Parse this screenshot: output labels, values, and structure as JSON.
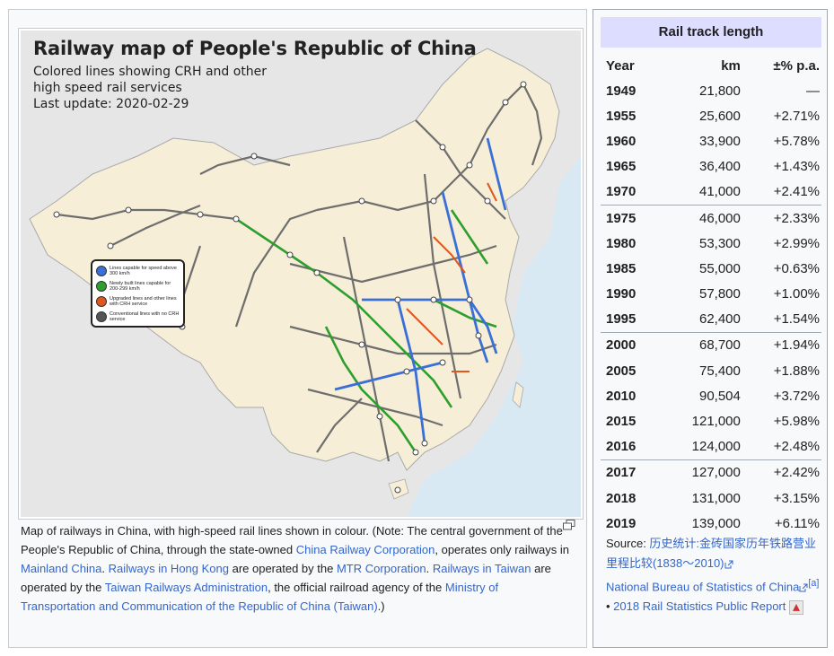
{
  "map": {
    "title": "Railway map of People's Republic of China",
    "subtitle_1": "Colored lines showing CRH and other",
    "subtitle_2": "high speed rail services",
    "subtitle_3": "Last update: 2020-02-29",
    "legend": [
      {
        "label": "Lines capable for speed above 300 km/h",
        "color": "#3a6fd8"
      },
      {
        "label": "Newly built lines capable for 200-299 km/h",
        "color": "#2e9e2e"
      },
      {
        "label": "Upgraded lines and other lines with CRH service",
        "color": "#e0561e"
      },
      {
        "label": "Conventional lines with no CRH service",
        "color": "#555555"
      }
    ],
    "colors": {
      "land": "#f6eed7",
      "foreign": "#e6e6e6",
      "sea": "#d9e9f4"
    }
  },
  "caption": {
    "t1": "Map of railways in China, with high-speed rail lines shown in colour.",
    "t2": " (Note: The central government of the People's Republic of China, through the state-owned ",
    "l1": "China Railway Corporation",
    "t3": ", operates only railways in ",
    "l2": "Mainland China",
    "t4": ". ",
    "l3": "Railways in Hong Kong",
    "t5": " are operated by the ",
    "l4": "MTR Corporation",
    "t6": ". ",
    "l5": "Railways in Taiwan",
    "t7": " are operated by the ",
    "l6": "Taiwan Railways Administration",
    "t8": ", the official railroad agency of the ",
    "l7": "Ministry of Transportation and Communication of the Republic of China (Taiwan)",
    "t9": ".)"
  },
  "infobox": {
    "title": "Rail track length",
    "headers": [
      "Year",
      "km",
      "±% p.a."
    ],
    "rows": [
      [
        "1949",
        "21,800",
        "—"
      ],
      [
        "1955",
        "25,600",
        "+2.71%"
      ],
      [
        "1960",
        "33,900",
        "+5.78%"
      ],
      [
        "1965",
        "36,400",
        "+1.43%"
      ],
      [
        "1970",
        "41,000",
        "+2.41%"
      ],
      [
        "1975",
        "46,000",
        "+2.33%"
      ],
      [
        "1980",
        "53,300",
        "+2.99%"
      ],
      [
        "1985",
        "55,000",
        "+0.63%"
      ],
      [
        "1990",
        "57,800",
        "+1.00%"
      ],
      [
        "1995",
        "62,400",
        "+1.54%"
      ],
      [
        "2000",
        "68,700",
        "+1.94%"
      ],
      [
        "2005",
        "75,400",
        "+1.88%"
      ],
      [
        "2010",
        "90,504",
        "+3.72%"
      ],
      [
        "2015",
        "121,000",
        "+5.98%"
      ],
      [
        "2016",
        "124,000",
        "+2.48%"
      ],
      [
        "2017",
        "127,000",
        "+2.42%"
      ],
      [
        "2018",
        "131,000",
        "+3.15%"
      ],
      [
        "2019",
        "139,000",
        "+6.11%"
      ]
    ],
    "source_label": "Source: ",
    "source_link1": "历史统计:金砖国家历年铁路营业里程比较(1838～2010)",
    "source_link2": "National Bureau of Statistics of China",
    "source_ref": "[a]",
    "source_sep": " • ",
    "source_link3": "2018 Rail Statistics Public Report"
  }
}
